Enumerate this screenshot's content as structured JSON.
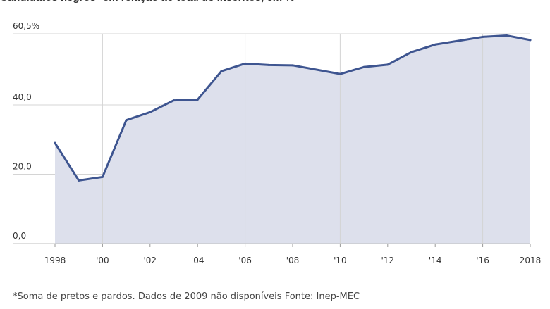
{
  "chart_data": {
    "type": "area",
    "title": "Candidatos negros* em relação ao total de inscritos, em %",
    "x": [
      1998,
      1999,
      2000,
      2001,
      2002,
      2003,
      2004,
      2005,
      2006,
      2007,
      2008,
      2010,
      2011,
      2012,
      2013,
      2014,
      2015,
      2016,
      2017,
      2018
    ],
    "series": [
      {
        "values": [
          29.0,
          18.2,
          19.2,
          35.6,
          37.9,
          41.3,
          41.5,
          49.7,
          51.9,
          51.5,
          51.4,
          48.9,
          50.9,
          51.6,
          55.2,
          57.4,
          58.5,
          59.6,
          60.0,
          58.7
        ]
      }
    ],
    "xticks": [
      {
        "value": 1998,
        "label": "1998"
      },
      {
        "value": 2000,
        "label": "'00"
      },
      {
        "value": 2002,
        "label": "'02"
      },
      {
        "value": 2004,
        "label": "'04"
      },
      {
        "value": 2006,
        "label": "'06"
      },
      {
        "value": 2008,
        "label": "'08"
      },
      {
        "value": 2010,
        "label": "'10"
      },
      {
        "value": 2012,
        "label": "'12"
      },
      {
        "value": 2014,
        "label": "'14"
      },
      {
        "value": 2016,
        "label": "'16"
      },
      {
        "value": 2018,
        "label": "2018"
      }
    ],
    "yticks": [
      {
        "value": 0,
        "label": "0,0"
      },
      {
        "value": 20,
        "label": "20,0"
      },
      {
        "value": 40,
        "label": "40,0"
      },
      {
        "value": 60.5,
        "label": "60,5%"
      }
    ],
    "xlim": [
      1998,
      2018
    ],
    "ylim": [
      0,
      60.5
    ],
    "grid": true,
    "colors": {
      "line": "#3e5590",
      "fill": "#dde0ec",
      "grid": "#d4d4d4"
    }
  },
  "footnote": "*Soma de pretos e pardos. Dados de 2009 não disponíveis Fonte: Inep-MEC"
}
